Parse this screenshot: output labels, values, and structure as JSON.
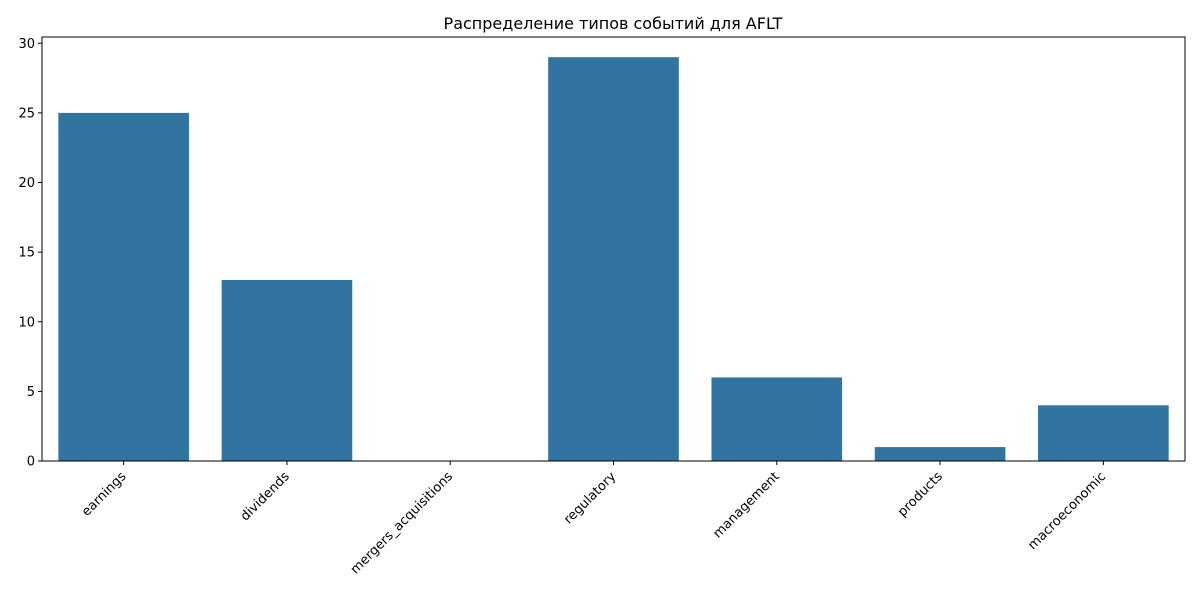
{
  "chart_data": {
    "type": "bar",
    "title": "Распределение типов событий для AFLT",
    "xlabel": "",
    "ylabel": "",
    "categories": [
      "earnings",
      "dividends",
      "mergers_acquisitions",
      "regulatory",
      "management",
      "products",
      "macroeconomic"
    ],
    "values": [
      25,
      13,
      0,
      29,
      6,
      1,
      4
    ],
    "ylim": [
      0,
      30.45
    ],
    "yticks": [
      0,
      5,
      10,
      15,
      20,
      25,
      30
    ],
    "x_tick_rotation_deg": 45,
    "grid": false,
    "legend": "none",
    "bar_color": "#3274a1"
  }
}
